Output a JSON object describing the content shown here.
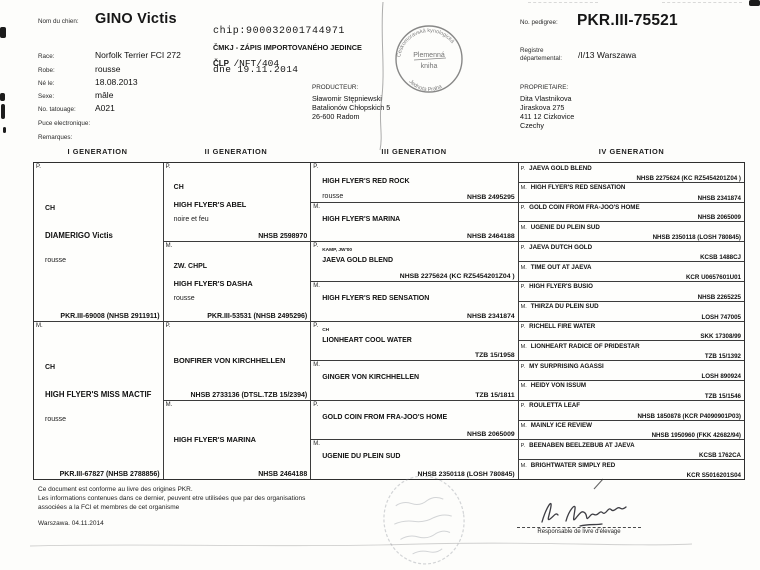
{
  "colors": {
    "paper": "#fdfdfb",
    "ink": "#161616",
    "stamp_ink": "#6b6b6b",
    "border": "#3c3c3c"
  },
  "header": {
    "left": {
      "fields": [
        {
          "label": "Nom du chien:",
          "value": "GINO Victis"
        },
        {
          "label": "Race:",
          "value": "Norfolk Terrier FCI 272"
        },
        {
          "label": "Robe:",
          "value": "rousse"
        },
        {
          "label": "Né le:",
          "value": "18.08.2013"
        },
        {
          "label": "Sexe:",
          "value": "mâle"
        },
        {
          "label": "No. tatouage:",
          "value": "A021"
        },
        {
          "label": "Puce electronique:",
          "value": ""
        },
        {
          "label": "Remarques:",
          "value": ""
        }
      ]
    },
    "center": {
      "chip": "chip:900032001744971",
      "cmkj_line": "ČMKJ - ZÁPIS IMPORTOVANÉHO JEDINCE",
      "clp_bold": "ČLP",
      "clp_rest": "/NFT/404",
      "date_line": "dne 19.11.2014",
      "producer_label": "PRODUCTEUR:",
      "producer_lines": [
        "Sławomir Stępniewski",
        "Batalionów Chłopskich 5",
        "26-600 Radom"
      ],
      "stamp": {
        "arc_top": "Českomoravská kynologická",
        "center_line1": "Plemenná",
        "center_line2": "kniha",
        "arc_bottom": "Jednota Praha"
      }
    },
    "right": {
      "pedigree_label": "No. pedigree:",
      "pedigree_no": "PKR.III-75521",
      "registre_label1": "Registre",
      "registre_label2": "départemental:",
      "registre_value": "/I/13 Warszawa",
      "owner_label": "PROPRIETAIRE:",
      "owner_lines": [
        "Dita Vlastnikova",
        "Jiraskova 275",
        "411 12 Cizkovice",
        "Czechy"
      ]
    }
  },
  "pedigree": {
    "columns": [
      {
        "title": "I GENERATION",
        "cells": [
          {
            "sex": "P.",
            "prefix": "CH",
            "name": "DIAMERIGO Victis",
            "color": "rousse",
            "reg": "PKR.III-69008 (NHSB 2911911)"
          },
          {
            "sex": "M.",
            "prefix": "CH",
            "name": "HIGH FLYER'S MISS MACTIF",
            "color": "rousse",
            "reg": "PKR.III-67827 (NHSB 2788856)"
          }
        ]
      },
      {
        "title": "II GENERATION",
        "cells": [
          {
            "sex": "P.",
            "prefix": "CH",
            "name": "HIGH FLYER'S ABEL",
            "color": "noire et feu",
            "reg": "NHSB 2598970"
          },
          {
            "sex": "M.",
            "prefix": "ZW. CHPL",
            "name": "HIGH FLYER'S DASHA",
            "color": "rousse",
            "reg": "PKR.III-53531 (NHSB 2495296)"
          },
          {
            "sex": "P.",
            "prefix": "",
            "name": "BONFIRER VON KIRCHHELLEN",
            "color": "",
            "reg": "NHSB 2733136 (DTSL.TZB 15/2394)"
          },
          {
            "sex": "M.",
            "prefix": "",
            "name": "HIGH FLYER'S MARINA",
            "color": "",
            "reg": "NHSB 2464188"
          }
        ]
      },
      {
        "title": "III GENERATION",
        "cells": [
          {
            "sex": "P.",
            "prefix": "",
            "name": "HIGH FLYER'S RED ROCK",
            "color": "rousse",
            "reg": "NHSB 2495295"
          },
          {
            "sex": "M.",
            "prefix": "",
            "name": "HIGH FLYER'S MARINA",
            "color": "",
            "reg": "NHSB 2464188"
          },
          {
            "sex": "P.",
            "prefix": "KAMP, JW'00",
            "name": "JAEVA GOLD BLEND",
            "color": "",
            "reg": "NHSB 2275624 (KC RZ5454201Z04 )"
          },
          {
            "sex": "M.",
            "prefix": "",
            "name": "HIGH FLYER'S RED SENSATION",
            "color": "",
            "reg": "NHSB 2341874"
          },
          {
            "sex": "P.",
            "prefix": "CH",
            "name": "LIONHEART COOL WATER",
            "color": "",
            "reg": "TZB 15/1958"
          },
          {
            "sex": "M.",
            "prefix": "",
            "name": "GINGER VON KIRCHHELLEN",
            "color": "",
            "reg": "TZB 15/1811"
          },
          {
            "sex": "P.",
            "prefix": "",
            "name": "GOLD COIN FROM FRA-JOO'S HOME",
            "color": "",
            "reg": "NHSB 2065009"
          },
          {
            "sex": "M.",
            "prefix": "",
            "name": "UGENIE DU PLEIN SUD",
            "color": "",
            "reg": "NHSB 2350118 (LOSH 780845)"
          }
        ]
      },
      {
        "title": "IV GENERATION",
        "cells": [
          {
            "sex": "P.",
            "name": "JAEVA GOLD BLEND",
            "reg": "NHSB 2275624 (KC RZ5454201Z04 )"
          },
          {
            "sex": "M.",
            "name": "HIGH FLYER'S RED SENSATION",
            "reg": "NHSB 2341874"
          },
          {
            "sex": "P.",
            "name": "GOLD COIN FROM FRA-JOO'S HOME",
            "reg": "NHSB 2065009"
          },
          {
            "sex": "M.",
            "name": "UGENIE DU PLEIN SUD",
            "reg": "NHSB 2350118 (LOSH 780845)"
          },
          {
            "sex": "P.",
            "name": "JAEVA DUTCH GOLD",
            "reg": "KCSB 1488CJ"
          },
          {
            "sex": "M.",
            "name": "TIME OUT AT JAEVA",
            "reg": "KCR U0657601U01"
          },
          {
            "sex": "P.",
            "name": "HIGH FLYER'S BUSIO",
            "reg": "NHSB 2265225"
          },
          {
            "sex": "M.",
            "name": "THIRZA DU PLEIN SUD",
            "reg": "LOSH 747005"
          },
          {
            "sex": "P.",
            "name": "RICHELL FIRE WATER",
            "reg": "SKK 17308/99"
          },
          {
            "sex": "M.",
            "name": "LIONHEART RADICE OF PRIDESTAR",
            "reg": "TZB 15/1392"
          },
          {
            "sex": "P.",
            "name": "MY SURPRISING AGASSI",
            "reg": "LOSH 890924"
          },
          {
            "sex": "M.",
            "name": "HEIDY VON ISSUM",
            "reg": "TZB 15/1546"
          },
          {
            "sex": "P.",
            "name": "ROULETTA LEAF",
            "reg": "NHSB 1850878 (KCR P4090901P03)"
          },
          {
            "sex": "M.",
            "name": "MAINLY ICE REVIEW",
            "reg": "NHSB 1950960 (FKK 42682/94)"
          },
          {
            "sex": "P.",
            "name": "BEENABEN BEELZEBUB AT JAEVA",
            "reg": "KCSB 1762CA"
          },
          {
            "sex": "M.",
            "name": "BRIGHTWATER SIMPLY RED",
            "reg": "KCR S5016201S04"
          }
        ]
      }
    ]
  },
  "footer": {
    "line1": "Ce document est conforme au livre des origines PKR.",
    "line2": "Les informations contenues dans ce dernier, peuvent etre utilisées que par des organisations",
    "line3": "associées a la FCI et membres de cet organisme",
    "date_line": "Warszawa.  04.11.2014",
    "signature_caption": "Responsable de livre d'élevage"
  }
}
